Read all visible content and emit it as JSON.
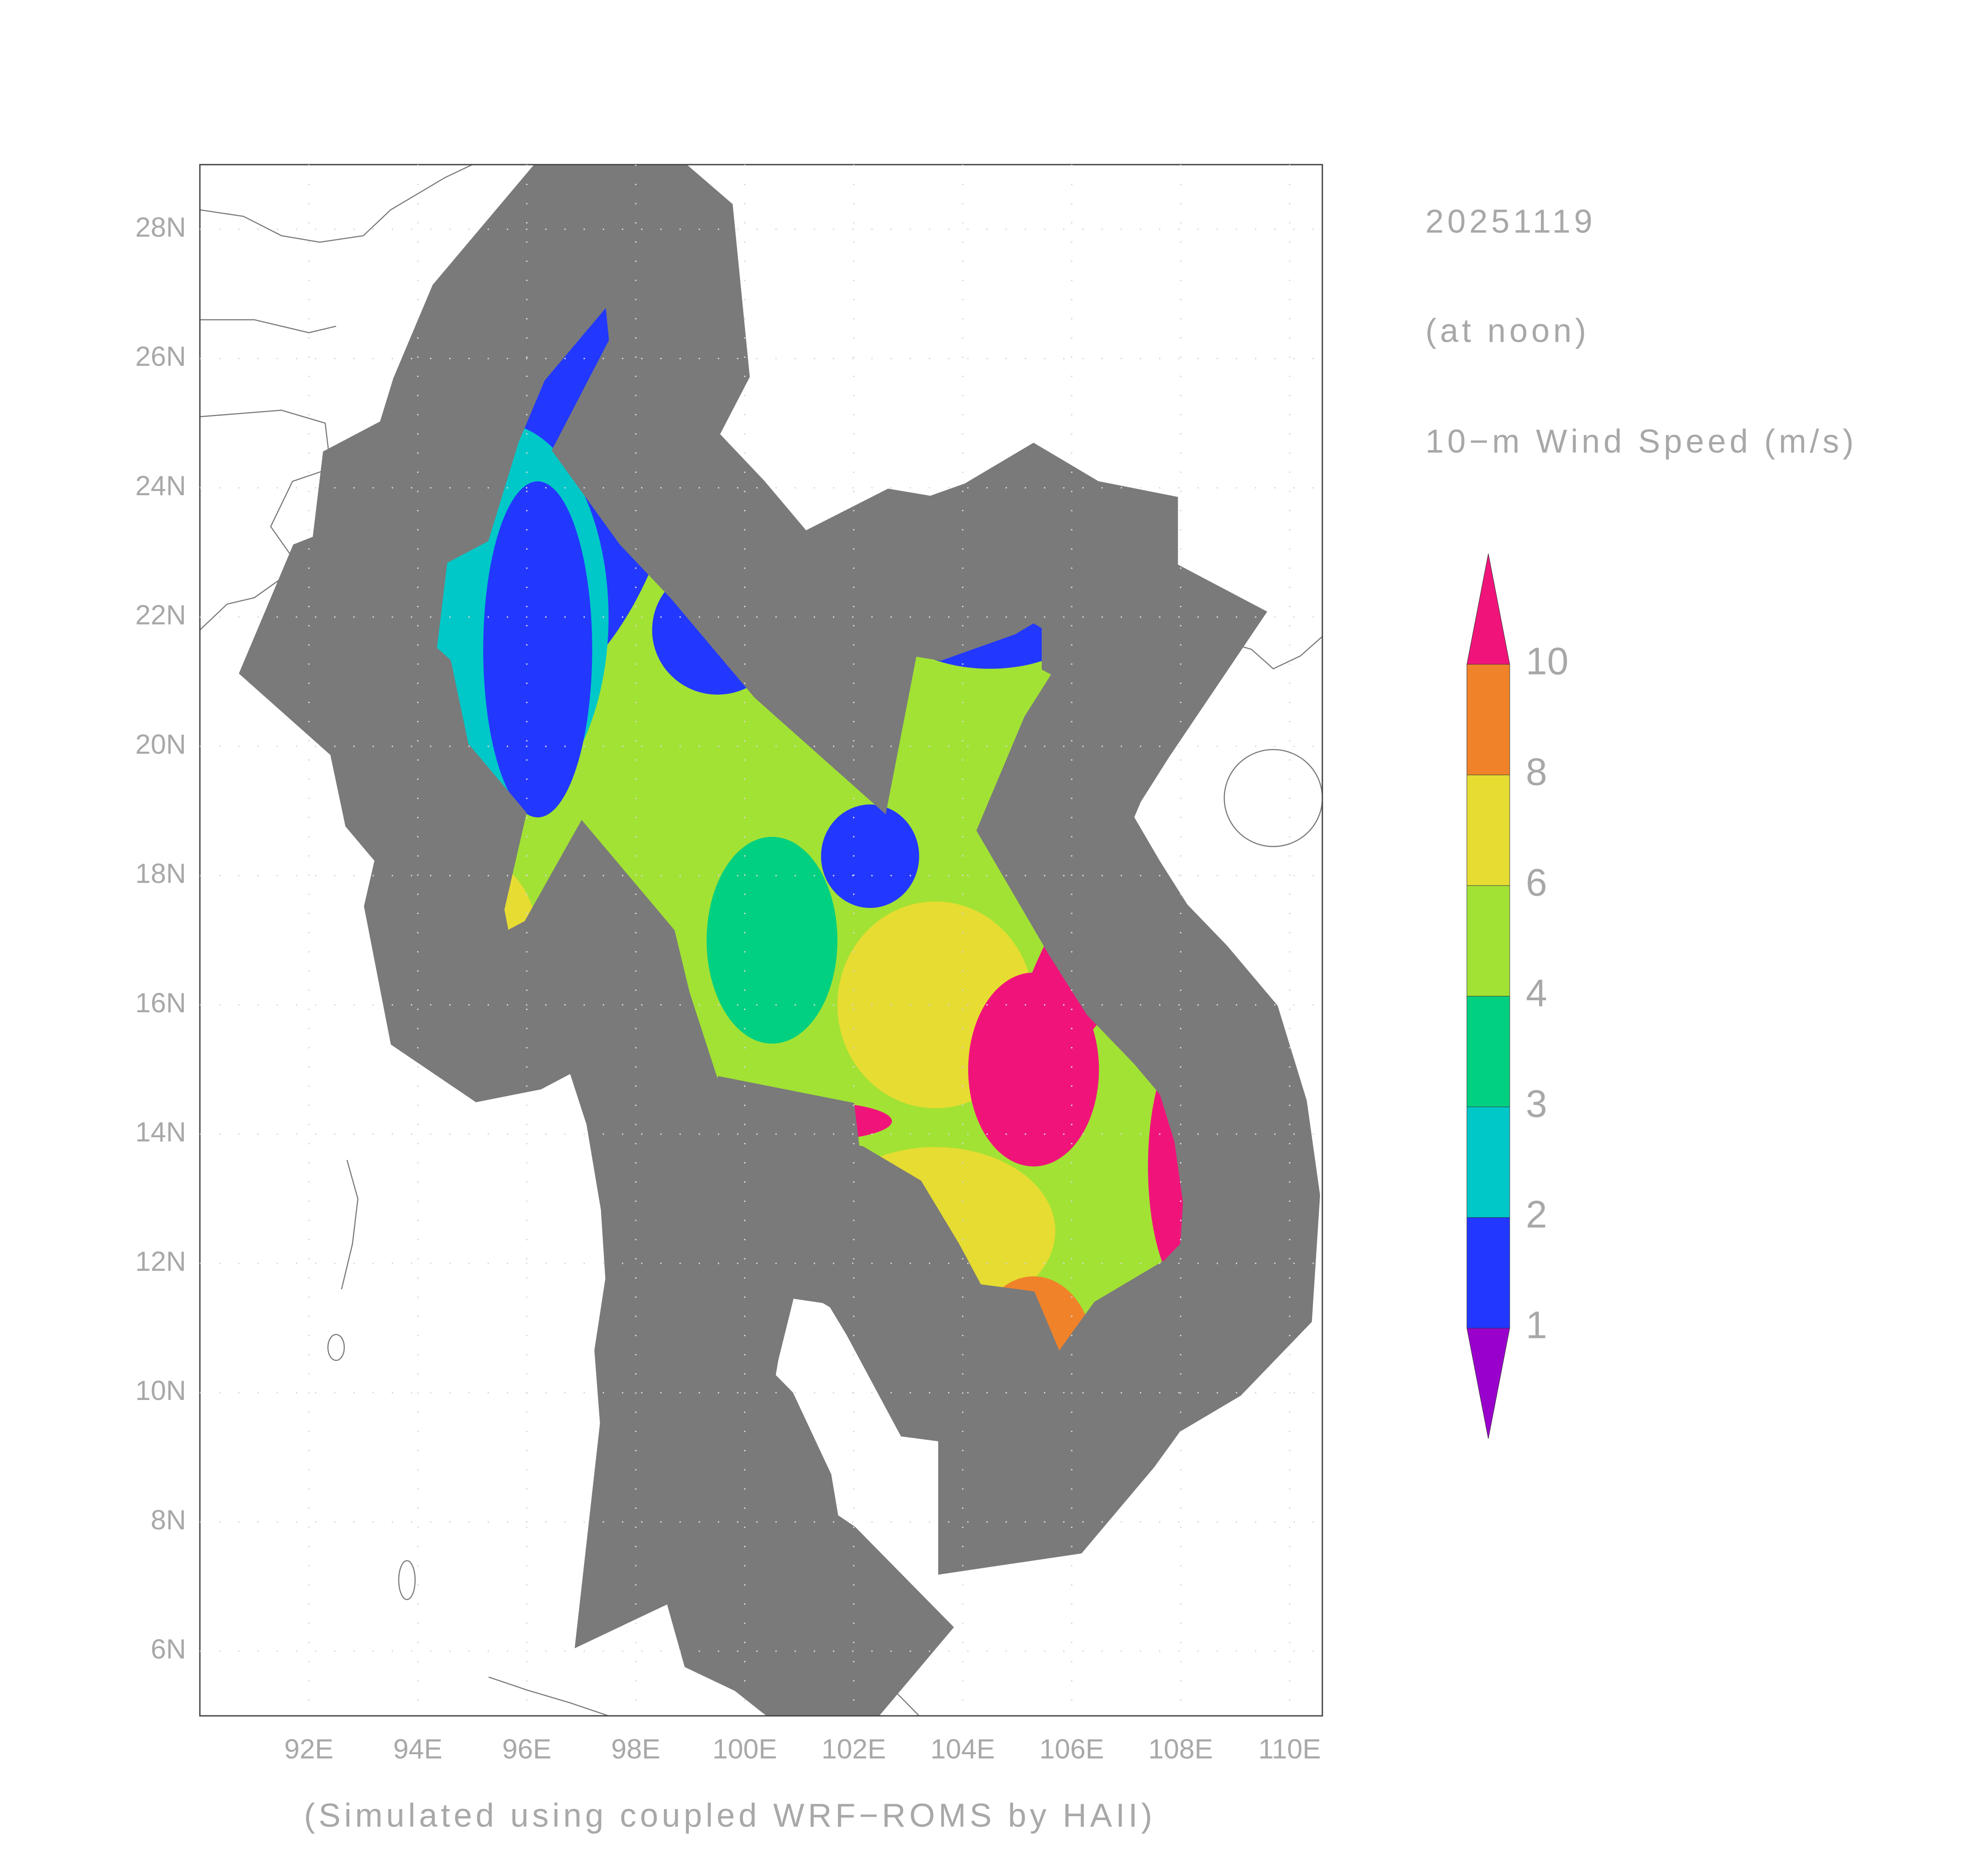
{
  "map": {
    "date": "20251119",
    "time": "(at noon)",
    "variable": "10−m Wind Speed (m/s)",
    "credit": "(Simulated using coupled WRF−ROMS by HAII)",
    "xlim": [
      90,
      110.6
    ],
    "ylim": [
      5,
      29
    ],
    "xticks": [
      {
        "value": 92,
        "label": "92E"
      },
      {
        "value": 94,
        "label": "94E"
      },
      {
        "value": 96,
        "label": "96E"
      },
      {
        "value": 98,
        "label": "98E"
      },
      {
        "value": 100,
        "label": "100E"
      },
      {
        "value": 102,
        "label": "102E"
      },
      {
        "value": 104,
        "label": "104E"
      },
      {
        "value": 106,
        "label": "106E"
      },
      {
        "value": 108,
        "label": "108E"
      },
      {
        "value": 110,
        "label": "110E"
      }
    ],
    "yticks": [
      {
        "value": 6,
        "label": "6N"
      },
      {
        "value": 8,
        "label": "8N"
      },
      {
        "value": 10,
        "label": "10N"
      },
      {
        "value": 12,
        "label": "12N"
      },
      {
        "value": 14,
        "label": "14N"
      },
      {
        "value": 16,
        "label": "16N"
      },
      {
        "value": 18,
        "label": "18N"
      },
      {
        "value": 20,
        "label": "20N"
      },
      {
        "value": 22,
        "label": "22N"
      },
      {
        "value": 24,
        "label": "24N"
      },
      {
        "value": 26,
        "label": "26N"
      },
      {
        "value": 28,
        "label": "28N"
      }
    ],
    "grid": true,
    "colorbar": {
      "levels": [
        1,
        2,
        3,
        4,
        6,
        8,
        10
      ],
      "colors": [
        "#9a00cc",
        "#2238ff",
        "#00c8c8",
        "#00d080",
        "#a2e234",
        "#e6dc32",
        "#f0822a",
        "#f0147a"
      ]
    }
  }
}
